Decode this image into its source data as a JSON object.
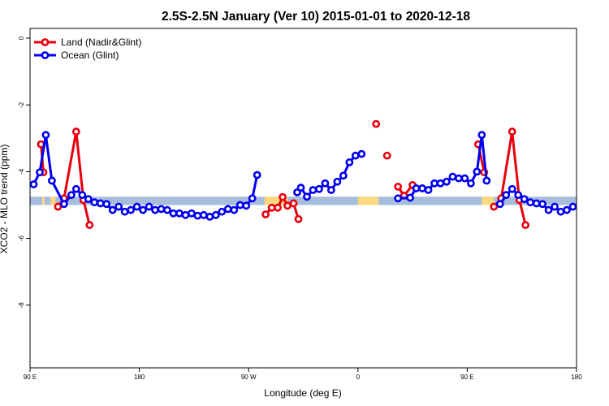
{
  "chart_data": {
    "type": "line",
    "title": "2.5S-2.5N January (Ver 10)   2015-01-01 to 2020-12-18",
    "xlabel": "Longitude (deg E)",
    "ylabel": "XCO2 - MLO trend (ppm)",
    "xlim": [
      0,
      450
    ],
    "ylim": [
      -10,
      0
    ],
    "x_ticks": [
      {
        "value": 0,
        "label": "90 E"
      },
      {
        "value": 90,
        "label": "180"
      },
      {
        "value": 180,
        "label": "90 W"
      },
      {
        "value": 270,
        "label": "0"
      },
      {
        "value": 360,
        "label": "90 E"
      },
      {
        "value": 450,
        "label": "180"
      }
    ],
    "y_ticks": [
      {
        "value": 0,
        "label": "0"
      },
      {
        "value": -2,
        "label": "-2"
      },
      {
        "value": -4,
        "label": "-4"
      },
      {
        "value": -6,
        "label": "-6"
      },
      {
        "value": -8,
        "label": "-8"
      }
    ],
    "grid": false,
    "legend_position": "top-left",
    "surface_band": {
      "y_top": -4.75,
      "y_bottom": -5.0,
      "colors": {
        "ocean": "#a6bddb",
        "land": "#fcd881"
      },
      "land_segments": [
        [
          10,
          12
        ],
        [
          17,
          21
        ],
        [
          193,
          212
        ],
        [
          270,
          287
        ],
        [
          372,
          382
        ]
      ]
    },
    "series": [
      {
        "name": "Land (Nadir&Glint)",
        "color": "#e8000b",
        "segments": [
          [
            [
              9,
              -3.18
            ],
            [
              11,
              -4.02
            ]
          ],
          [
            [
              23,
              -5.05
            ],
            [
              28,
              -4.8
            ],
            [
              38,
              -2.8
            ],
            [
              44,
              -4.85
            ],
            [
              49,
              -5.6
            ]
          ],
          [
            [
              194,
              -5.28
            ],
            [
              199,
              -5.08
            ],
            [
              204,
              -5.08
            ],
            [
              208,
              -4.76
            ],
            [
              212,
              -5.02
            ],
            [
              217,
              -4.95
            ],
            [
              221,
              -5.42
            ]
          ],
          [
            [
              285,
              -2.57
            ]
          ],
          [
            [
              294,
              -3.52
            ]
          ],
          [
            [
              303,
              -4.45
            ],
            [
              308,
              -4.72
            ],
            [
              315,
              -4.4
            ]
          ],
          [
            [
              369,
              -3.18
            ],
            [
              374,
              -4.02
            ]
          ],
          [
            [
              382,
              -5.05
            ],
            [
              388,
              -4.8
            ],
            [
              397,
              -2.8
            ],
            [
              403,
              -4.85
            ],
            [
              408,
              -5.6
            ]
          ]
        ]
      },
      {
        "name": "Ocean (Glint)",
        "color": "#0000ee",
        "segments": [
          [
            [
              3,
              -4.38
            ],
            [
              8,
              -4.02
            ],
            [
              13,
              -2.9
            ],
            [
              18,
              -4.27
            ],
            [
              28,
              -4.97
            ],
            [
              34,
              -4.7
            ],
            [
              38,
              -4.52
            ],
            [
              43,
              -4.7
            ],
            [
              48,
              -4.82
            ],
            [
              53,
              -4.92
            ],
            [
              58,
              -4.95
            ],
            [
              63,
              -4.97
            ],
            [
              68,
              -5.15
            ],
            [
              73,
              -5.05
            ],
            [
              78,
              -5.2
            ],
            [
              83,
              -5.15
            ],
            [
              88,
              -5.05
            ],
            [
              93,
              -5.15
            ],
            [
              98,
              -5.05
            ],
            [
              103,
              -5.15
            ],
            [
              108,
              -5.12
            ],
            [
              113,
              -5.15
            ],
            [
              118,
              -5.25
            ],
            [
              123,
              -5.25
            ],
            [
              128,
              -5.3
            ],
            [
              133,
              -5.25
            ],
            [
              138,
              -5.32
            ],
            [
              143,
              -5.3
            ],
            [
              148,
              -5.35
            ],
            [
              153,
              -5.3
            ],
            [
              158,
              -5.2
            ],
            [
              163,
              -5.12
            ],
            [
              168,
              -5.15
            ],
            [
              173,
              -5.0
            ],
            [
              178,
              -5.02
            ],
            [
              183,
              -4.8
            ],
            [
              187,
              -4.1
            ]
          ],
          [
            [
              220,
              -4.62
            ],
            [
              223,
              -4.48
            ],
            [
              228,
              -4.75
            ],
            [
              233,
              -4.55
            ],
            [
              238,
              -4.52
            ],
            [
              243,
              -4.35
            ],
            [
              248,
              -4.55
            ],
            [
              253,
              -4.3
            ],
            [
              258,
              -4.12
            ],
            [
              263,
              -3.72
            ],
            [
              268,
              -3.52
            ],
            [
              273,
              -3.47
            ]
          ],
          [
            [
              303,
              -4.8
            ],
            [
              313,
              -4.78
            ],
            [
              318,
              -4.5
            ],
            [
              323,
              -4.5
            ],
            [
              328,
              -4.55
            ],
            [
              333,
              -4.35
            ],
            [
              338,
              -4.35
            ],
            [
              343,
              -4.3
            ],
            [
              348,
              -4.15
            ],
            [
              353,
              -4.2
            ],
            [
              358,
              -4.2
            ],
            [
              363,
              -4.35
            ],
            [
              368,
              -4.0
            ],
            [
              372,
              -2.9
            ],
            [
              376,
              -4.27
            ]
          ],
          [
            [
              387,
              -4.97
            ],
            [
              392,
              -4.7
            ],
            [
              397,
              -4.52
            ],
            [
              402,
              -4.7
            ],
            [
              407,
              -4.82
            ],
            [
              412,
              -4.92
            ],
            [
              417,
              -4.95
            ],
            [
              422,
              -4.97
            ],
            [
              427,
              -5.15
            ],
            [
              432,
              -5.05
            ],
            [
              437,
              -5.2
            ],
            [
              442,
              -5.15
            ],
            [
              447,
              -5.05
            ]
          ]
        ]
      }
    ]
  }
}
